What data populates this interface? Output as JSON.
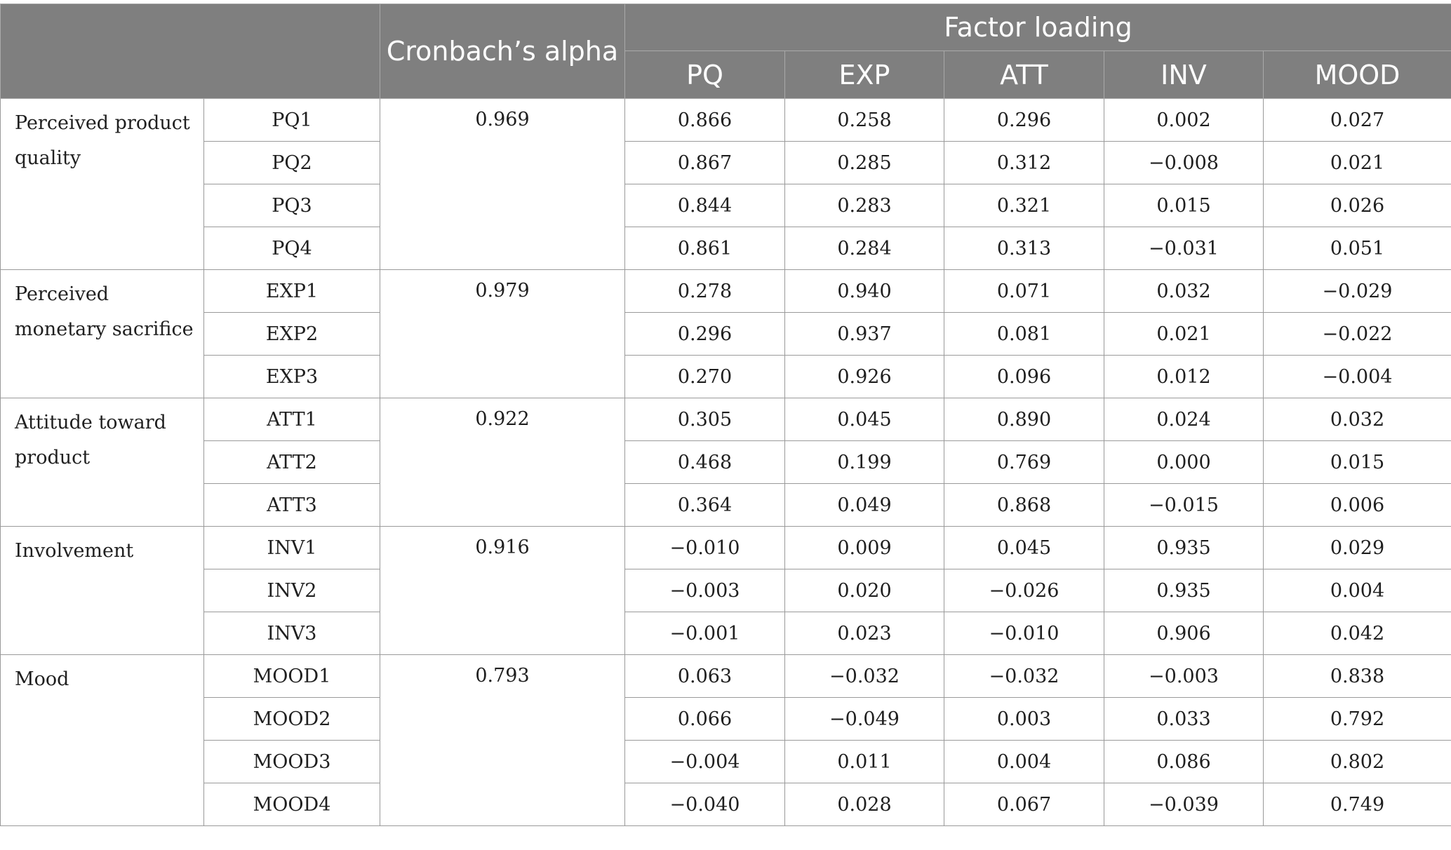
{
  "header": {
    "alpha_label": "Cronbach’s alpha",
    "factor_loading_label": "Factor loading",
    "factor_columns": [
      "PQ",
      "EXP",
      "ATT",
      "INV",
      "MOOD"
    ]
  },
  "groups": [
    {
      "construct": "Perceived product quality",
      "alpha": "0.969",
      "items": [
        {
          "item": "PQ1",
          "loadings": [
            "0.866",
            "0.258",
            "0.296",
            "0.002",
            "0.027"
          ]
        },
        {
          "item": "PQ2",
          "loadings": [
            "0.867",
            "0.285",
            "0.312",
            "−0.008",
            "0.021"
          ]
        },
        {
          "item": "PQ3",
          "loadings": [
            "0.844",
            "0.283",
            "0.321",
            "0.015",
            "0.026"
          ]
        },
        {
          "item": "PQ4",
          "loadings": [
            "0.861",
            "0.284",
            "0.313",
            "−0.031",
            "0.051"
          ]
        }
      ]
    },
    {
      "construct": "Perceived monetary sacrifice",
      "alpha": "0.979",
      "items": [
        {
          "item": "EXP1",
          "loadings": [
            "0.278",
            "0.940",
            "0.071",
            "0.032",
            "−0.029"
          ]
        },
        {
          "item": "EXP2",
          "loadings": [
            "0.296",
            "0.937",
            "0.081",
            "0.021",
            "−0.022"
          ]
        },
        {
          "item": "EXP3",
          "loadings": [
            "0.270",
            "0.926",
            "0.096",
            "0.012",
            "−0.004"
          ]
        }
      ]
    },
    {
      "construct": "Attitude toward product",
      "alpha": "0.922",
      "items": [
        {
          "item": "ATT1",
          "loadings": [
            "0.305",
            "0.045",
            "0.890",
            "0.024",
            "0.032"
          ]
        },
        {
          "item": "ATT2",
          "loadings": [
            "0.468",
            "0.199",
            "0.769",
            "0.000",
            "0.015"
          ]
        },
        {
          "item": "ATT3",
          "loadings": [
            "0.364",
            "0.049",
            "0.868",
            "−0.015",
            "0.006"
          ]
        }
      ]
    },
    {
      "construct": "Involvement",
      "alpha": "0.916",
      "items": [
        {
          "item": "INV1",
          "loadings": [
            "−0.010",
            "0.009",
            "0.045",
            "0.935",
            "0.029"
          ]
        },
        {
          "item": "INV2",
          "loadings": [
            "−0.003",
            "0.020",
            "−0.026",
            "0.935",
            "0.004"
          ]
        },
        {
          "item": "INV3",
          "loadings": [
            "−0.001",
            "0.023",
            "−0.010",
            "0.906",
            "0.042"
          ]
        }
      ]
    },
    {
      "construct": "Mood",
      "alpha": "0.793",
      "items": [
        {
          "item": "MOOD1",
          "loadings": [
            "0.063",
            "−0.032",
            "−0.032",
            "−0.003",
            "0.838"
          ]
        },
        {
          "item": "MOOD2",
          "loadings": [
            "0.066",
            "−0.049",
            "0.003",
            "0.033",
            "0.792"
          ]
        },
        {
          "item": "MOOD3",
          "loadings": [
            "−0.004",
            "0.011",
            "0.004",
            "0.086",
            "0.802"
          ]
        },
        {
          "item": "MOOD4",
          "loadings": [
            "−0.040",
            "0.028",
            "0.067",
            "−0.039",
            "0.749"
          ]
        }
      ]
    }
  ]
}
